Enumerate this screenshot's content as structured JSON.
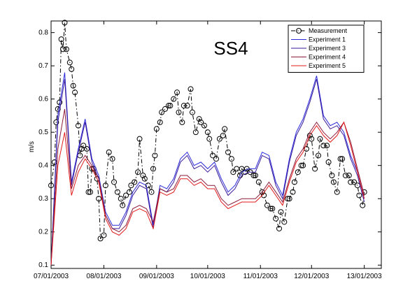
{
  "chart_data": {
    "type": "line",
    "title": "SS4",
    "ylabel": "m/s",
    "xlim": [
      0,
      194
    ],
    "ylim": [
      0.09,
      0.835
    ],
    "xticks": [
      {
        "value": 0,
        "label": "07/01/2003"
      },
      {
        "value": 31,
        "label": "08/01/2003"
      },
      {
        "value": 62,
        "label": "09/01/2003"
      },
      {
        "value": 92,
        "label": "10/01/2003"
      },
      {
        "value": 123,
        "label": "11/01/2003"
      },
      {
        "value": 153,
        "label": "12/01/2003"
      },
      {
        "value": 184,
        "label": "13/01/2003"
      }
    ],
    "yticks": [
      0.1,
      0.2,
      0.3,
      0.4,
      0.5,
      0.6,
      0.7,
      0.8
    ],
    "grid": false,
    "legend": "upper right",
    "series": [
      {
        "name": "Measurement",
        "color": "#000000",
        "marker": "o",
        "linestyle": "-.",
        "x": [
          0,
          2,
          3,
          4,
          5,
          6,
          7,
          8,
          9,
          11,
          12,
          13,
          14,
          16,
          17,
          18,
          19,
          21,
          22,
          23,
          24,
          25,
          27,
          28,
          29,
          31,
          32,
          34,
          36,
          37,
          39,
          41,
          42,
          44,
          46,
          47,
          49,
          51,
          52,
          54,
          55,
          57,
          59,
          60,
          61,
          62,
          64,
          65,
          67,
          69,
          70,
          72,
          74,
          75,
          77,
          78,
          80,
          82,
          83,
          85,
          87,
          88,
          90,
          92,
          93,
          95,
          97,
          99,
          101,
          102,
          104,
          106,
          107,
          109,
          111,
          112,
          114,
          115,
          117,
          119,
          120,
          122,
          124,
          125,
          127,
          129,
          130,
          132,
          134,
          135,
          137,
          139,
          140,
          142,
          143,
          145,
          147,
          148,
          150,
          152,
          153,
          155,
          157,
          158,
          160,
          162,
          163,
          165,
          166,
          168,
          170,
          171,
          173,
          175,
          176,
          178,
          180,
          181,
          183,
          184
        ],
        "values": [
          0.34,
          0.41,
          0.53,
          0.57,
          0.59,
          0.78,
          0.75,
          0.83,
          0.75,
          0.71,
          0.69,
          0.64,
          0.62,
          0.52,
          0.43,
          0.45,
          0.46,
          0.45,
          0.32,
          0.32,
          0.39,
          0.39,
          0.36,
          0.3,
          0.18,
          0.19,
          0.34,
          0.44,
          0.42,
          0.35,
          0.32,
          0.3,
          0.28,
          0.31,
          0.32,
          0.34,
          0.35,
          0.38,
          0.48,
          0.37,
          0.36,
          0.34,
          0.32,
          0.39,
          0.43,
          0.51,
          0.53,
          0.56,
          0.57,
          0.58,
          0.58,
          0.6,
          0.62,
          0.56,
          0.53,
          0.58,
          0.58,
          0.63,
          0.56,
          0.5,
          0.54,
          0.53,
          0.52,
          0.5,
          0.48,
          0.43,
          0.42,
          0.48,
          0.49,
          0.51,
          0.44,
          0.42,
          0.38,
          0.39,
          0.37,
          0.39,
          0.38,
          0.39,
          0.38,
          0.37,
          0.37,
          0.35,
          0.32,
          0.31,
          0.28,
          0.27,
          0.27,
          0.24,
          0.21,
          0.26,
          0.23,
          0.3,
          0.3,
          0.32,
          0.35,
          0.38,
          0.4,
          0.4,
          0.45,
          0.49,
          0.48,
          0.39,
          0.43,
          0.48,
          0.46,
          0.46,
          0.41,
          0.37,
          0.35,
          0.32,
          0.42,
          0.42,
          0.37,
          0.37,
          0.35,
          0.35,
          0.34,
          0.31,
          0.28,
          0.32
        ]
      },
      {
        "name": "Experiment 1",
        "color": "#2a2ad8",
        "linestyle": "-",
        "x": [
          0,
          4,
          8,
          12,
          16,
          20,
          24,
          28,
          32,
          36,
          40,
          44,
          48,
          52,
          56,
          60,
          64,
          68,
          72,
          76,
          80,
          84,
          88,
          92,
          96,
          100,
          104,
          108,
          112,
          116,
          120,
          124,
          128,
          132,
          136,
          140,
          144,
          148,
          152,
          156,
          160,
          164,
          168,
          172,
          176,
          180,
          184
        ],
        "values": [
          0.1,
          0.55,
          0.68,
          0.35,
          0.45,
          0.54,
          0.42,
          0.37,
          0.26,
          0.22,
          0.22,
          0.26,
          0.32,
          0.35,
          0.34,
          0.22,
          0.34,
          0.33,
          0.36,
          0.42,
          0.44,
          0.4,
          0.41,
          0.39,
          0.41,
          0.36,
          0.32,
          0.34,
          0.38,
          0.39,
          0.39,
          0.44,
          0.43,
          0.35,
          0.31,
          0.42,
          0.5,
          0.54,
          0.6,
          0.67,
          0.55,
          0.52,
          0.53,
          0.5,
          0.43,
          0.38,
          0.3
        ]
      },
      {
        "name": "Experiment 3",
        "color": "#3a1a9a",
        "linestyle": "-",
        "x": [
          0,
          4,
          8,
          12,
          16,
          20,
          24,
          28,
          32,
          36,
          40,
          44,
          48,
          52,
          56,
          60,
          64,
          68,
          72,
          76,
          80,
          84,
          88,
          92,
          96,
          100,
          104,
          108,
          112,
          116,
          120,
          124,
          128,
          132,
          136,
          140,
          144,
          148,
          152,
          156,
          160,
          164,
          168,
          172,
          176,
          180,
          184
        ],
        "values": [
          0.1,
          0.53,
          0.66,
          0.34,
          0.44,
          0.53,
          0.41,
          0.36,
          0.25,
          0.21,
          0.21,
          0.25,
          0.31,
          0.34,
          0.33,
          0.21,
          0.33,
          0.32,
          0.35,
          0.41,
          0.43,
          0.39,
          0.4,
          0.38,
          0.4,
          0.35,
          0.31,
          0.33,
          0.37,
          0.38,
          0.38,
          0.43,
          0.42,
          0.34,
          0.3,
          0.41,
          0.49,
          0.53,
          0.59,
          0.66,
          0.54,
          0.51,
          0.52,
          0.49,
          0.42,
          0.37,
          0.29
        ]
      },
      {
        "name": "Experiment 4",
        "color": "#8a1a3a",
        "linestyle": "-",
        "x": [
          0,
          4,
          8,
          12,
          16,
          20,
          24,
          28,
          32,
          36,
          40,
          44,
          48,
          52,
          56,
          60,
          64,
          68,
          72,
          76,
          80,
          84,
          88,
          92,
          96,
          100,
          104,
          108,
          112,
          116,
          120,
          124,
          128,
          132,
          136,
          140,
          144,
          148,
          152,
          156,
          160,
          164,
          168,
          172,
          176,
          180,
          184
        ],
        "values": [
          0.1,
          0.45,
          0.57,
          0.33,
          0.4,
          0.43,
          0.4,
          0.36,
          0.25,
          0.21,
          0.2,
          0.22,
          0.27,
          0.28,
          0.27,
          0.23,
          0.33,
          0.32,
          0.33,
          0.37,
          0.37,
          0.35,
          0.36,
          0.34,
          0.34,
          0.3,
          0.28,
          0.29,
          0.3,
          0.3,
          0.3,
          0.32,
          0.35,
          0.32,
          0.29,
          0.36,
          0.42,
          0.45,
          0.5,
          0.53,
          0.5,
          0.48,
          0.5,
          0.53,
          0.47,
          0.39,
          0.31
        ]
      },
      {
        "name": "Experiment 5",
        "color": "#e01a1a",
        "linestyle": "-",
        "x": [
          0,
          4,
          8,
          12,
          16,
          20,
          24,
          28,
          32,
          36,
          40,
          44,
          48,
          52,
          56,
          60,
          64,
          68,
          72,
          76,
          80,
          84,
          88,
          92,
          96,
          100,
          104,
          108,
          112,
          116,
          120,
          124,
          128,
          132,
          136,
          140,
          144,
          148,
          152,
          156,
          160,
          164,
          168,
          172,
          176,
          180,
          184
        ],
        "values": [
          0.1,
          0.4,
          0.5,
          0.31,
          0.38,
          0.42,
          0.39,
          0.35,
          0.24,
          0.2,
          0.19,
          0.21,
          0.26,
          0.27,
          0.26,
          0.21,
          0.32,
          0.31,
          0.32,
          0.36,
          0.36,
          0.34,
          0.35,
          0.33,
          0.33,
          0.29,
          0.27,
          0.28,
          0.29,
          0.29,
          0.29,
          0.31,
          0.34,
          0.31,
          0.28,
          0.35,
          0.41,
          0.44,
          0.49,
          0.52,
          0.49,
          0.47,
          0.49,
          0.53,
          0.46,
          0.38,
          0.3
        ]
      }
    ]
  }
}
